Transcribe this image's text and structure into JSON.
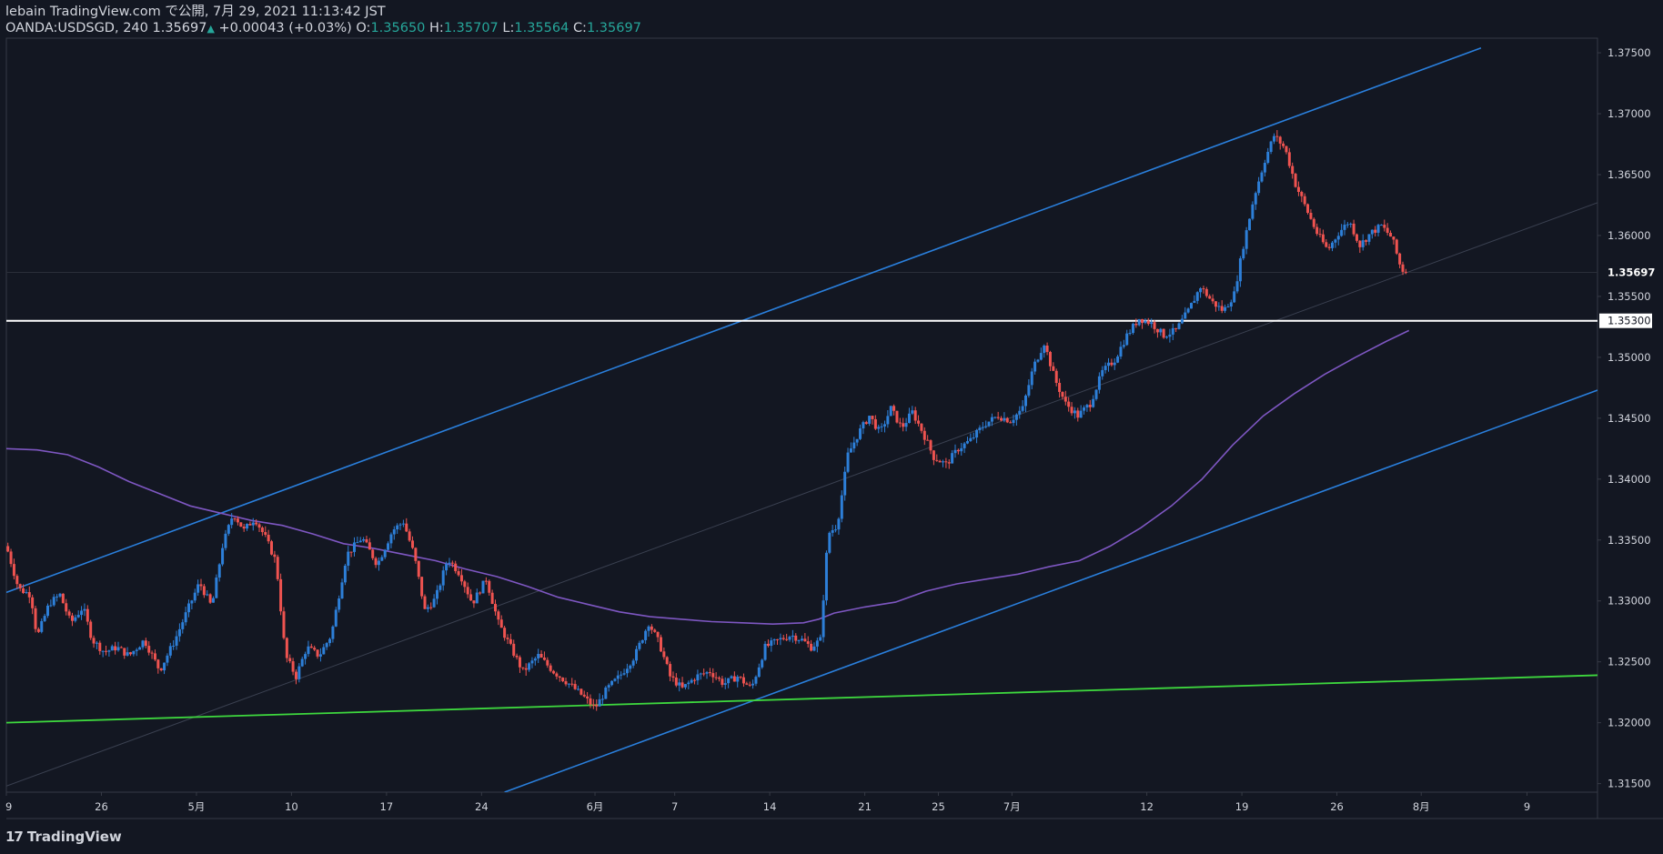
{
  "header": {
    "line1": "lebain TradingView.com で公開, 7月 29, 2021 11:13:42 JST",
    "symbol": "OANDA:USDSGD, 240",
    "last": "1.35697",
    "arrow": "▲",
    "change": "+0.00043 (+0.03%)",
    "o_label": "O:",
    "o": "1.35650",
    "h_label": "H:",
    "h": "1.35707",
    "l_label": "L:",
    "l": "1.35564",
    "c_label": "C:",
    "c": "1.35697"
  },
  "footer": {
    "logo_text": "TradingView"
  },
  "colors": {
    "background": "#131722",
    "up": "#2d7fd8",
    "down": "#ef5350",
    "ma": "#7e57c2",
    "channel": "#2a7fdc",
    "support": "#3ed83e",
    "level": "#ffffff",
    "axis_text": "#d1d4dc"
  },
  "chart_data": {
    "type": "candlestick",
    "symbol": "OANDA:USDSGD",
    "timeframe": "240",
    "ylim": [
      1.3143,
      1.3762
    ],
    "y_ticks": [
      "1.37500",
      "1.37000",
      "1.36500",
      "1.36000",
      "1.35500",
      "1.35000",
      "1.34500",
      "1.34000",
      "1.33500",
      "1.33000",
      "1.32500",
      "1.32000",
      "1.31500"
    ],
    "x_ticks": [
      {
        "label": "9",
        "t": 0
      },
      {
        "label": "26",
        "t": 6.2
      },
      {
        "label": "5月",
        "t": 12.4
      },
      {
        "label": "10",
        "t": 18.6
      },
      {
        "label": "17",
        "t": 24.8
      },
      {
        "label": "24",
        "t": 31.0
      },
      {
        "label": "6月",
        "t": 38.4
      },
      {
        "label": "7",
        "t": 43.6
      },
      {
        "label": "14",
        "t": 49.8
      },
      {
        "label": "21",
        "t": 56.0
      },
      {
        "label": "25",
        "t": 60.8
      },
      {
        "label": "7月",
        "t": 65.6
      },
      {
        "label": "12",
        "t": 74.4
      },
      {
        "label": "19",
        "t": 80.6
      },
      {
        "label": "26",
        "t": 86.8
      },
      {
        "label": "8月",
        "t": 92.3
      },
      {
        "label": "9",
        "t": 99.2
      }
    ],
    "t_range": [
      0,
      103.8
    ],
    "last_price": 1.35697,
    "last_price_label": "1.35697",
    "level": 1.353,
    "level_label": "1.35300",
    "price_path": [
      [
        0,
        1.3345
      ],
      [
        0.8,
        1.331
      ],
      [
        1.6,
        1.3305
      ],
      [
        2,
        1.327
      ],
      [
        2.8,
        1.3298
      ],
      [
        3.5,
        1.3305
      ],
      [
        4.2,
        1.3282
      ],
      [
        5,
        1.3295
      ],
      [
        5.6,
        1.3268
      ],
      [
        6.4,
        1.3258
      ],
      [
        7.2,
        1.3262
      ],
      [
        8,
        1.3255
      ],
      [
        9,
        1.3268
      ],
      [
        10,
        1.3243
      ],
      [
        11,
        1.3268
      ],
      [
        11.9,
        1.3295
      ],
      [
        12.6,
        1.3315
      ],
      [
        13.4,
        1.3295
      ],
      [
        14.1,
        1.3345
      ],
      [
        14.8,
        1.3372
      ],
      [
        15.5,
        1.3358
      ],
      [
        16.2,
        1.3368
      ],
      [
        16.9,
        1.3352
      ],
      [
        17.6,
        1.3332
      ],
      [
        18.2,
        1.3255
      ],
      [
        18.9,
        1.3238
      ],
      [
        19.6,
        1.3262
      ],
      [
        20.4,
        1.3255
      ],
      [
        21.2,
        1.3272
      ],
      [
        22.2,
        1.3338
      ],
      [
        23.2,
        1.3352
      ],
      [
        24.2,
        1.333
      ],
      [
        25.2,
        1.3358
      ],
      [
        25.9,
        1.3365
      ],
      [
        26.6,
        1.3338
      ],
      [
        27.3,
        1.3292
      ],
      [
        28,
        1.3302
      ],
      [
        28.8,
        1.3335
      ],
      [
        29.6,
        1.3322
      ],
      [
        30.4,
        1.3298
      ],
      [
        31.3,
        1.3318
      ],
      [
        32.1,
        1.3282
      ],
      [
        32.9,
        1.3262
      ],
      [
        33.7,
        1.3242
      ],
      [
        34.7,
        1.3255
      ],
      [
        35.7,
        1.3242
      ],
      [
        36.7,
        1.3232
      ],
      [
        37.6,
        1.3222
      ],
      [
        38.4,
        1.3212
      ],
      [
        39.2,
        1.3228
      ],
      [
        40,
        1.3238
      ],
      [
        41,
        1.3255
      ],
      [
        41.9,
        1.3282
      ],
      [
        42.6,
        1.3265
      ],
      [
        43.3,
        1.3238
      ],
      [
        44.1,
        1.3228
      ],
      [
        45,
        1.3238
      ],
      [
        45.9,
        1.3242
      ],
      [
        46.8,
        1.3232
      ],
      [
        47.7,
        1.3238
      ],
      [
        48.6,
        1.3228
      ],
      [
        49.5,
        1.3262
      ],
      [
        50.4,
        1.3268
      ],
      [
        51.2,
        1.3272
      ],
      [
        51.9,
        1.3268
      ],
      [
        52.5,
        1.3262
      ],
      [
        53.1,
        1.3268
      ],
      [
        53.6,
        1.3355
      ],
      [
        54.2,
        1.3362
      ],
      [
        54.9,
        1.342
      ],
      [
        55.6,
        1.3438
      ],
      [
        56.3,
        1.3452
      ],
      [
        57,
        1.3438
      ],
      [
        57.7,
        1.3458
      ],
      [
        58.4,
        1.3442
      ],
      [
        59.1,
        1.3455
      ],
      [
        59.8,
        1.3438
      ],
      [
        60.5,
        1.3418
      ],
      [
        61.3,
        1.3412
      ],
      [
        62.1,
        1.3425
      ],
      [
        62.9,
        1.3432
      ],
      [
        63.8,
        1.3445
      ],
      [
        64.7,
        1.3452
      ],
      [
        65.5,
        1.3448
      ],
      [
        66.3,
        1.3458
      ],
      [
        67,
        1.3492
      ],
      [
        67.7,
        1.3512
      ],
      [
        68.4,
        1.3482
      ],
      [
        69.1,
        1.3462
      ],
      [
        69.9,
        1.3452
      ],
      [
        70.7,
        1.3462
      ],
      [
        71.5,
        1.3488
      ],
      [
        72.3,
        1.3498
      ],
      [
        73.1,
        1.3518
      ],
      [
        73.9,
        1.3532
      ],
      [
        74.7,
        1.3528
      ],
      [
        75.5,
        1.3518
      ],
      [
        76.3,
        1.3522
      ],
      [
        77.1,
        1.3538
      ],
      [
        77.9,
        1.3558
      ],
      [
        78.7,
        1.3545
      ],
      [
        79.4,
        1.3538
      ],
      [
        80.1,
        1.3552
      ],
      [
        80.7,
        1.3592
      ],
      [
        81.4,
        1.3632
      ],
      [
        82.1,
        1.3662
      ],
      [
        82.7,
        1.3682
      ],
      [
        83.4,
        1.3672
      ],
      [
        84.1,
        1.3642
      ],
      [
        84.8,
        1.3622
      ],
      [
        85.5,
        1.3602
      ],
      [
        86.2,
        1.3588
      ],
      [
        86.9,
        1.3602
      ],
      [
        87.6,
        1.3612
      ],
      [
        88.3,
        1.3592
      ],
      [
        89,
        1.3602
      ],
      [
        89.7,
        1.3608
      ],
      [
        90.4,
        1.3598
      ],
      [
        91,
        1.3572
      ],
      [
        91.5,
        1.35697
      ]
    ],
    "moving_average": [
      [
        0,
        1.3425
      ],
      [
        2,
        1.3424
      ],
      [
        4,
        1.342
      ],
      [
        6,
        1.341
      ],
      [
        8,
        1.3398
      ],
      [
        10,
        1.3388
      ],
      [
        12,
        1.3378
      ],
      [
        14,
        1.3372
      ],
      [
        16,
        1.3366
      ],
      [
        18,
        1.3362
      ],
      [
        20,
        1.3355
      ],
      [
        22,
        1.3347
      ],
      [
        24,
        1.3343
      ],
      [
        26,
        1.3338
      ],
      [
        28,
        1.3333
      ],
      [
        30,
        1.3326
      ],
      [
        32,
        1.332
      ],
      [
        34,
        1.3312
      ],
      [
        36,
        1.3303
      ],
      [
        38,
        1.3297
      ],
      [
        40,
        1.3291
      ],
      [
        42,
        1.3287
      ],
      [
        44,
        1.3285
      ],
      [
        46,
        1.3283
      ],
      [
        48,
        1.3282
      ],
      [
        50,
        1.3281
      ],
      [
        52,
        1.3282
      ],
      [
        53,
        1.3285
      ],
      [
        54,
        1.329
      ],
      [
        56,
        1.3295
      ],
      [
        58,
        1.3299
      ],
      [
        60,
        1.3308
      ],
      [
        62,
        1.3314
      ],
      [
        64,
        1.3318
      ],
      [
        66,
        1.3322
      ],
      [
        68,
        1.3328
      ],
      [
        70,
        1.3333
      ],
      [
        72,
        1.3345
      ],
      [
        74,
        1.336
      ],
      [
        76,
        1.3378
      ],
      [
        78,
        1.34
      ],
      [
        80,
        1.3428
      ],
      [
        82,
        1.3452
      ],
      [
        84,
        1.347
      ],
      [
        86,
        1.3486
      ],
      [
        88,
        1.35
      ],
      [
        90,
        1.3513
      ],
      [
        91.5,
        1.3522
      ]
    ],
    "trend_lines": [
      {
        "name": "channel-upper",
        "x1": 0,
        "y1": 1.3307,
        "x2": 96.2,
        "y2": 1.3754
      },
      {
        "name": "channel-lower",
        "x1": 32.5,
        "y1": 1.3143,
        "x2": 103.8,
        "y2": 1.3473
      },
      {
        "name": "channel-mid",
        "x1": 0,
        "y1": 1.3148,
        "x2": 103.8,
        "y2": 1.3627
      },
      {
        "name": "support-line",
        "x1": 0,
        "y1": 1.32,
        "x2": 103.8,
        "y2": 1.3239
      }
    ]
  }
}
